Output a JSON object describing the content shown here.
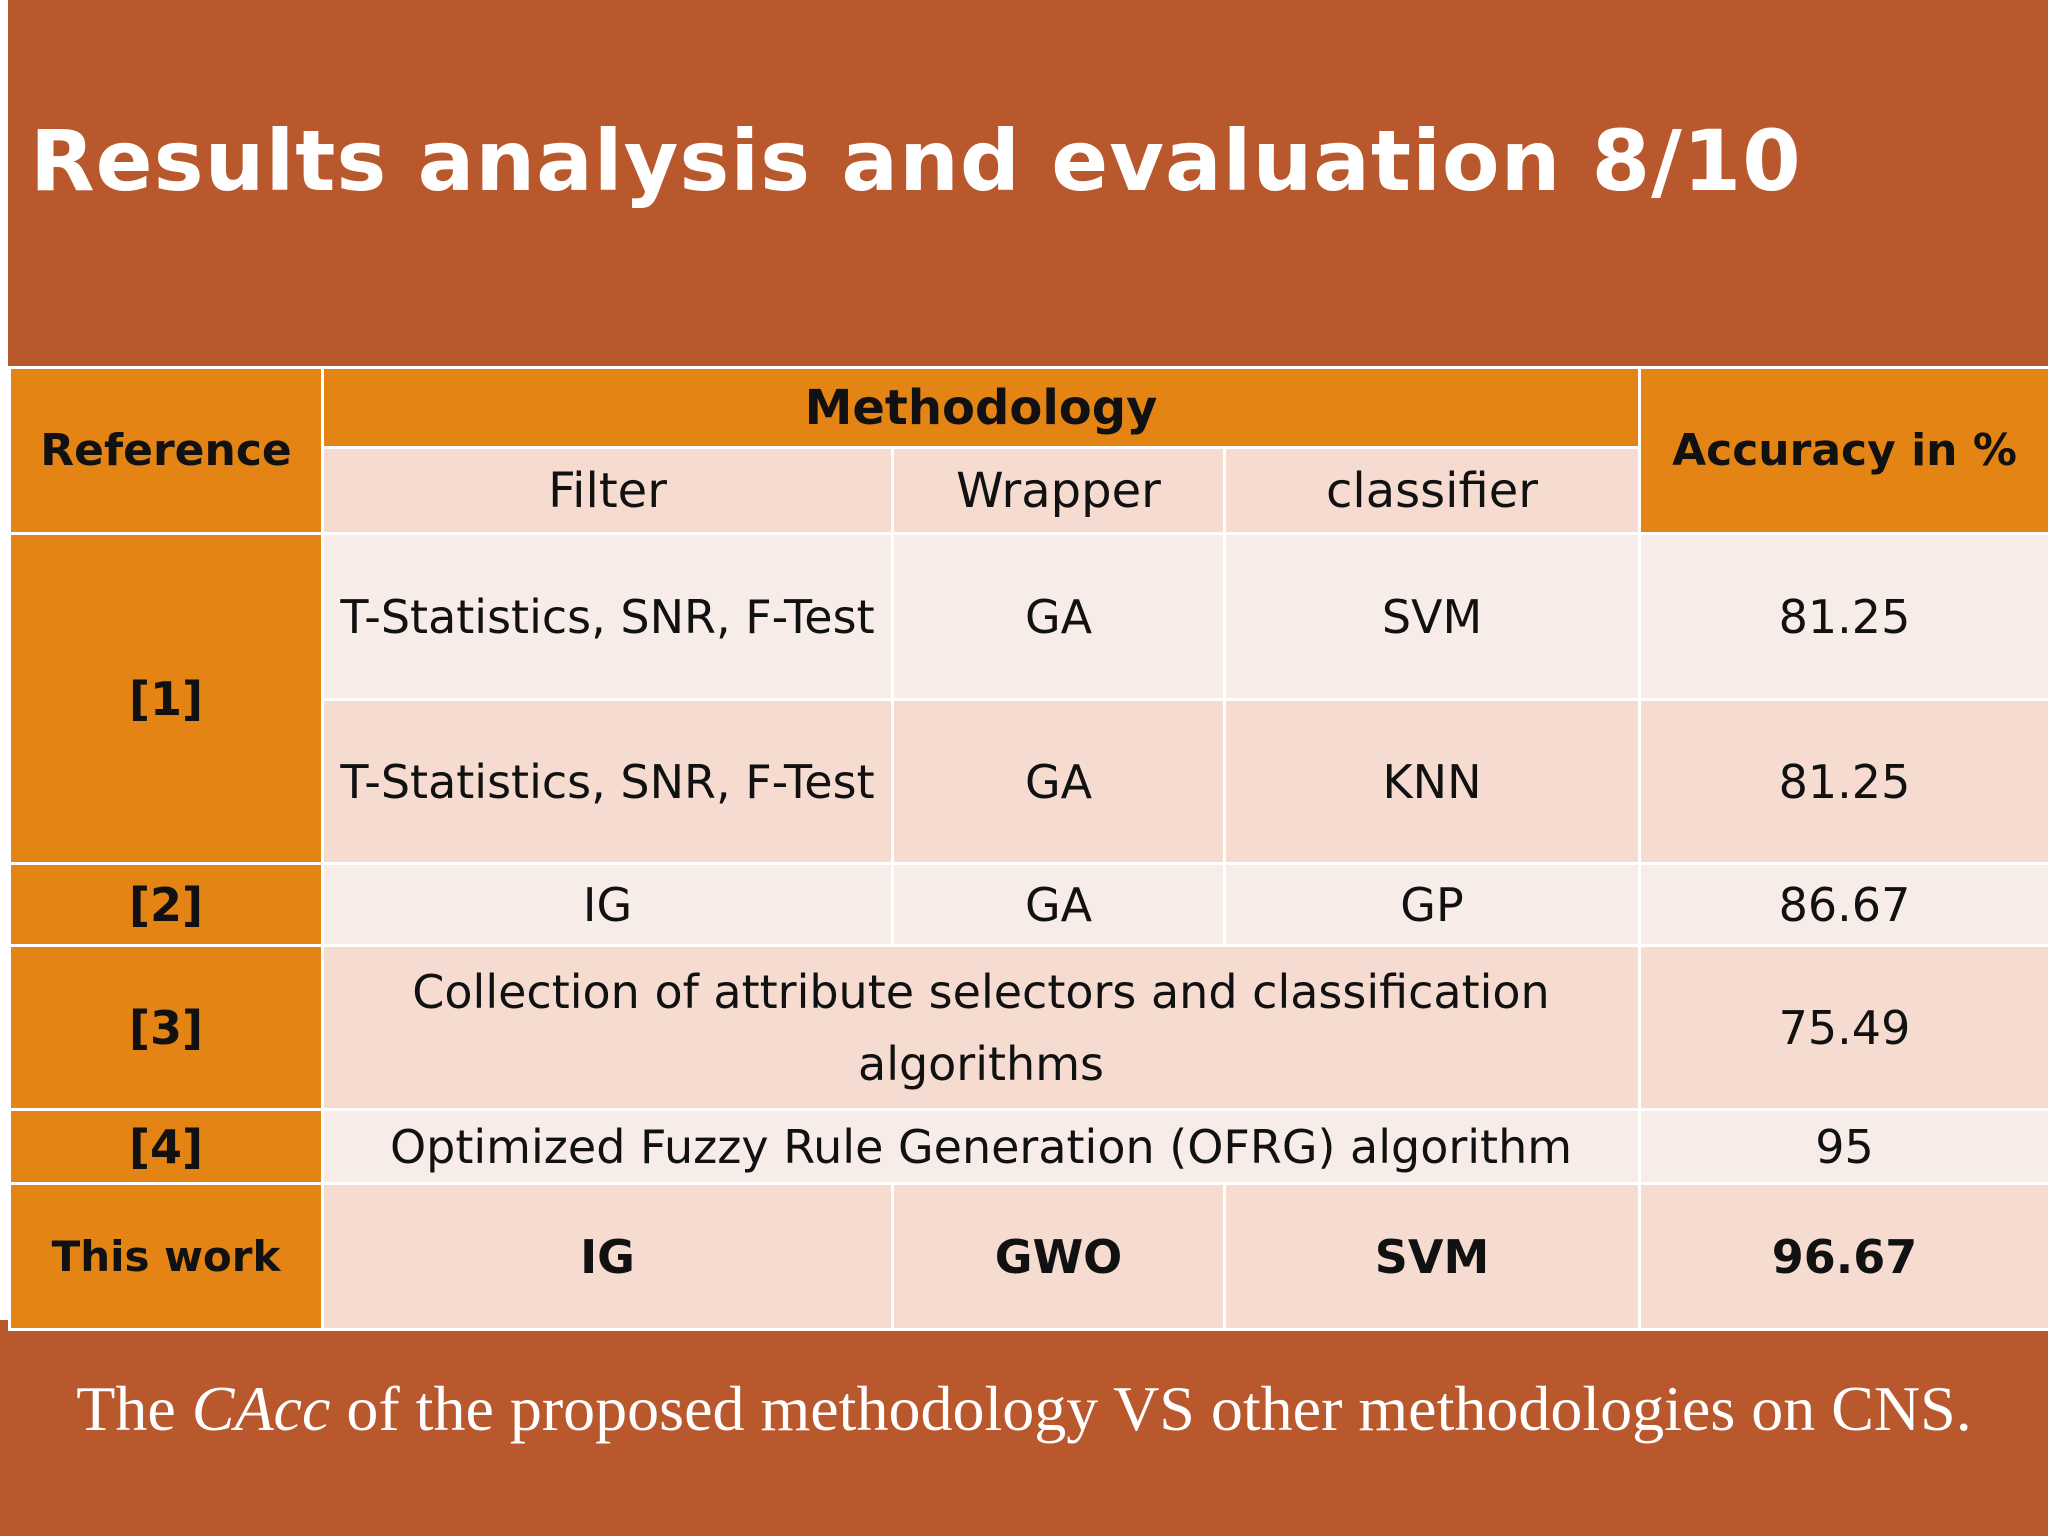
{
  "slide": {
    "title": "Results analysis and evaluation 8/10",
    "caption": {
      "prefix": "The ",
      "italic": "CAcc",
      "suffix": " of the proposed methodology VS other methodologies on CNS."
    }
  },
  "table": {
    "headers": {
      "reference": "Reference",
      "methodology": "Methodology",
      "filter": "Filter",
      "wrapper": "Wrapper",
      "classifier": "classifier",
      "accuracy": "Accuracy in %"
    },
    "rows": [
      {
        "reference": "[1]",
        "filter": "T-Statistics, SNR, F-Test",
        "wrapper": "GA",
        "classifier": "SVM",
        "accuracy": "81.25"
      },
      {
        "reference": "[1]",
        "filter": "T-Statistics, SNR, F-Test",
        "wrapper": "GA",
        "classifier": "KNN",
        "accuracy": "81.25"
      },
      {
        "reference": "[2]",
        "filter": "IG",
        "wrapper": "GA",
        "classifier": "GP",
        "accuracy": "86.67"
      },
      {
        "reference": "[3]",
        "methodology": "Collection of attribute selectors and classification algorithms",
        "accuracy": "75.49"
      },
      {
        "reference": "[4]",
        "methodology": "Optimized Fuzzy Rule Generation (OFRG) algorithm",
        "accuracy": "95"
      },
      {
        "reference": "This work",
        "filter": "IG",
        "wrapper": "GWO",
        "classifier": "SVM",
        "accuracy": "96.67"
      }
    ]
  }
}
